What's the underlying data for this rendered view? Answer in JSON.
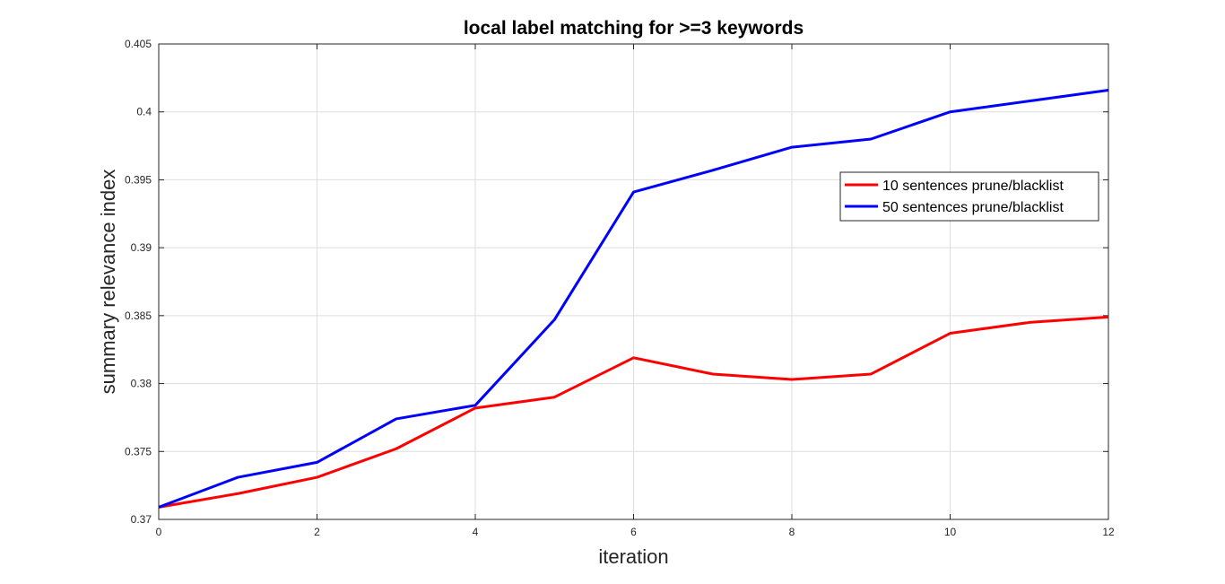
{
  "chart_data": {
    "type": "line",
    "title": "local label matching for >=3 keywords",
    "xlabel": "iteration",
    "ylabel": "summary relevance index",
    "xlim": [
      0,
      12
    ],
    "ylim": [
      0.37,
      0.405
    ],
    "x_ticks": [
      "0",
      "2",
      "4",
      "6",
      "8",
      "10",
      "12"
    ],
    "y_ticks": [
      "0.37",
      "0.375",
      "0.38",
      "0.385",
      "0.39",
      "0.395",
      "0.4",
      "0.405"
    ],
    "grid": true,
    "legend_position": "top-right",
    "x": [
      0,
      1,
      2,
      3,
      4,
      5,
      6,
      7,
      8,
      9,
      10,
      11,
      12
    ],
    "series": [
      {
        "name": "10 sentences prune/blacklist",
        "color": "#ff0000",
        "values": [
          0.3709,
          0.3719,
          0.3731,
          0.3752,
          0.3782,
          0.379,
          0.3819,
          0.3807,
          0.3803,
          0.3807,
          0.3837,
          0.3845,
          0.3849
        ]
      },
      {
        "name": "50 sentences prune/blacklist",
        "color": "#0000ff",
        "values": [
          0.3709,
          0.3731,
          0.3742,
          0.3774,
          0.3784,
          0.3847,
          0.3941,
          0.3957,
          0.3974,
          0.398,
          0.4,
          0.4008,
          0.4016
        ]
      }
    ]
  }
}
